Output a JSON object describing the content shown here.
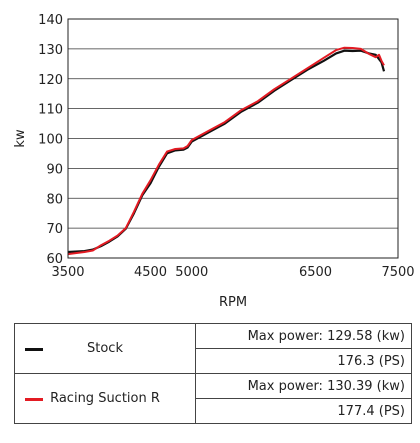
{
  "chart_data": {
    "type": "line",
    "xlabel": "RPM",
    "ylabel": "kw",
    "xlim": [
      3500,
      7500
    ],
    "ylim": [
      60,
      140
    ],
    "xticks": [
      3500,
      4500,
      5000,
      6500,
      7500
    ],
    "xtick_labels": [
      "3500",
      "4500",
      "5000",
      "6500",
      "7500"
    ],
    "yticks": [
      60,
      70,
      80,
      90,
      100,
      110,
      120,
      130,
      140
    ],
    "ytick_labels": [
      "60",
      "70",
      "80",
      "90",
      "100",
      "110",
      "120",
      "130",
      "140"
    ],
    "grid": true,
    "series": [
      {
        "name": "Stock",
        "color": "#111111",
        "points": [
          [
            3500,
            62
          ],
          [
            3700,
            62.3
          ],
          [
            3800,
            62.8
          ],
          [
            3900,
            64
          ],
          [
            4000,
            65.5
          ],
          [
            4100,
            67.2
          ],
          [
            4200,
            69.8
          ],
          [
            4300,
            75
          ],
          [
            4400,
            81
          ],
          [
            4500,
            85
          ],
          [
            4600,
            90.5
          ],
          [
            4700,
            95
          ],
          [
            4800,
            96
          ],
          [
            4900,
            96.3
          ],
          [
            4950,
            97
          ],
          [
            5000,
            99
          ],
          [
            5200,
            102
          ],
          [
            5400,
            105
          ],
          [
            5600,
            109
          ],
          [
            5800,
            112
          ],
          [
            6000,
            116
          ],
          [
            6200,
            119.5
          ],
          [
            6400,
            123
          ],
          [
            6600,
            126
          ],
          [
            6750,
            128.5
          ],
          [
            6850,
            129.4
          ],
          [
            6950,
            129.3
          ],
          [
            7050,
            129.4
          ],
          [
            7150,
            128.5
          ],
          [
            7230,
            128
          ],
          [
            7300,
            125.5
          ],
          [
            7330,
            122.5
          ]
        ]
      },
      {
        "name": "Racing Suction R",
        "color": "#e31b23",
        "points": [
          [
            3500,
            61.3
          ],
          [
            3700,
            62
          ],
          [
            3800,
            62.5
          ],
          [
            3900,
            64.3
          ],
          [
            4000,
            65.8
          ],
          [
            4100,
            67.5
          ],
          [
            4200,
            70
          ],
          [
            4300,
            75.5
          ],
          [
            4400,
            81.5
          ],
          [
            4500,
            86
          ],
          [
            4600,
            91.2
          ],
          [
            4700,
            95.6
          ],
          [
            4800,
            96.5
          ],
          [
            4900,
            96.7
          ],
          [
            4950,
            97.5
          ],
          [
            5000,
            99.5
          ],
          [
            5200,
            102.5
          ],
          [
            5400,
            105.5
          ],
          [
            5600,
            109.5
          ],
          [
            5800,
            112.5
          ],
          [
            6000,
            116.5
          ],
          [
            6200,
            120
          ],
          [
            6400,
            123.5
          ],
          [
            6600,
            127
          ],
          [
            6750,
            129.6
          ],
          [
            6850,
            130.4
          ],
          [
            6950,
            130.3
          ],
          [
            7050,
            130
          ],
          [
            7150,
            128.3
          ],
          [
            7230,
            127.2
          ],
          [
            7270,
            128
          ],
          [
            7300,
            126
          ],
          [
            7330,
            124.5
          ]
        ]
      }
    ]
  },
  "legend": {
    "rows": [
      {
        "name": "Stock",
        "color": "#111111",
        "max_power": "Max power: 129.58 (kw)",
        "ps": "176.3 (PS)"
      },
      {
        "name": "Racing Suction R",
        "color": "#e31b23",
        "max_power": "Max power: 130.39 (kw)",
        "ps": "177.4 (PS)"
      }
    ]
  }
}
